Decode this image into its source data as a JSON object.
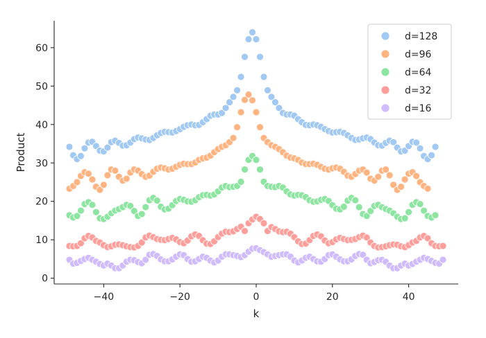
{
  "chart_data": {
    "type": "scatter",
    "title": "",
    "xlabel": "k",
    "ylabel": "Product",
    "xlim": [
      -53,
      53
    ],
    "ylim": [
      -1.5,
      67
    ],
    "xticks": [
      -40,
      -20,
      0,
      20,
      40
    ],
    "xtick_labels": [
      "−40",
      "−20",
      "0",
      "20",
      "40"
    ],
    "yticks": [
      0,
      10,
      20,
      30,
      40,
      50,
      60
    ],
    "ytick_labels": [
      "0",
      "10",
      "20",
      "30",
      "40",
      "50",
      "60"
    ],
    "legend_position": "top-right",
    "x": [
      -49,
      -48,
      -47,
      -46,
      -45,
      -44,
      -43,
      -42,
      -41,
      -40,
      -39,
      -38,
      -37,
      -36,
      -35,
      -34,
      -33,
      -32,
      -31,
      -30,
      -29,
      -28,
      -27,
      -26,
      -25,
      -24,
      -23,
      -22,
      -21,
      -20,
      -19,
      -18,
      -17,
      -16,
      -15,
      -14,
      -13,
      -12,
      -11,
      -10,
      -9,
      -8,
      -7,
      -6,
      -5,
      -4,
      -3,
      -2,
      -1,
      0,
      1,
      2,
      3,
      4,
      5,
      6,
      7,
      8,
      9,
      10,
      11,
      12,
      13,
      14,
      15,
      16,
      17,
      18,
      19,
      20,
      21,
      22,
      23,
      24,
      25,
      26,
      27,
      28,
      29,
      30,
      31,
      32,
      33,
      34,
      35,
      36,
      37,
      38,
      39,
      40,
      41,
      42,
      43,
      44,
      45,
      46,
      47,
      48,
      49
    ],
    "series": [
      {
        "name": "d=128",
        "color": "#a1c9f4",
        "values": [
          34.2,
          32.0,
          31.0,
          31.8,
          33.8,
          35.3,
          35.5,
          34.4,
          33.2,
          33.0,
          34.0,
          35.4,
          35.8,
          35.2,
          34.5,
          34.6,
          35.3,
          36.2,
          36.6,
          36.4,
          36.1,
          36.0,
          36.5,
          37.2,
          37.8,
          38.1,
          38.0,
          37.9,
          38.3,
          38.8,
          39.4,
          39.8,
          40.0,
          39.8,
          39.9,
          40.6,
          41.4,
          42.3,
          42.6,
          42.6,
          43.0,
          44.3,
          45.8,
          47.2,
          48.9,
          52.4,
          57.6,
          62.2,
          64.0,
          62.2,
          57.6,
          52.4,
          48.9,
          47.2,
          45.8,
          44.3,
          43.0,
          42.6,
          42.6,
          42.3,
          41.4,
          40.6,
          39.9,
          39.8,
          40.0,
          39.8,
          39.4,
          38.8,
          38.3,
          37.9,
          38.0,
          38.1,
          37.8,
          37.2,
          36.5,
          36.0,
          36.1,
          36.4,
          36.6,
          36.2,
          35.3,
          34.6,
          34.5,
          35.2,
          35.8,
          35.4,
          34.0,
          33.0,
          33.2,
          34.4,
          35.5,
          35.3,
          33.8,
          31.8,
          31.0,
          32.0,
          34.2
        ]
      },
      {
        "name": "d=96",
        "color": "#ffb482",
        "values": [
          23.3,
          24.0,
          25.0,
          26.6,
          27.6,
          27.2,
          25.7,
          23.8,
          23.0,
          24.3,
          26.8,
          28.3,
          28.0,
          26.4,
          25.4,
          25.9,
          27.5,
          28.3,
          28.0,
          27.1,
          26.4,
          26.7,
          27.7,
          28.5,
          28.8,
          28.6,
          28.3,
          28.5,
          29.0,
          29.5,
          29.8,
          29.7,
          29.7,
          30.1,
          30.8,
          31.2,
          31.4,
          31.9,
          32.8,
          33.6,
          34.2,
          34.6,
          35.4,
          36.5,
          39.3,
          43.2,
          46.4,
          47.8,
          46.3,
          43.2,
          39.3,
          36.5,
          35.4,
          34.6,
          34.2,
          33.6,
          32.8,
          31.9,
          31.4,
          31.2,
          30.8,
          30.1,
          29.7,
          29.7,
          29.8,
          29.5,
          29.0,
          28.5,
          28.3,
          28.6,
          28.8,
          28.5,
          27.7,
          26.7,
          26.4,
          27.1,
          28.0,
          28.3,
          27.5,
          25.9,
          25.4,
          26.4,
          28.0,
          28.3,
          26.8,
          24.3,
          23.0,
          23.8,
          25.7,
          27.2,
          27.6,
          26.6,
          25.0,
          24.0,
          23.3
        ]
      },
      {
        "name": "d=64",
        "color": "#8de5a1",
        "values": [
          16.4,
          15.8,
          16.2,
          17.6,
          19.3,
          19.8,
          19.1,
          17.2,
          15.6,
          15.4,
          16.0,
          16.9,
          17.6,
          18.0,
          18.5,
          19.1,
          18.8,
          17.5,
          16.2,
          16.7,
          18.5,
          20.3,
          20.9,
          20.2,
          18.6,
          17.9,
          18.1,
          19.0,
          20.1,
          20.6,
          20.4,
          20.0,
          19.9,
          20.3,
          21.1,
          21.6,
          21.7,
          21.5,
          21.8,
          22.6,
          23.6,
          24.0,
          23.7,
          23.8,
          24.0,
          25.1,
          28.3,
          30.8,
          31.8,
          30.8,
          28.3,
          25.1,
          24.0,
          23.8,
          23.7,
          24.0,
          23.6,
          22.6,
          21.8,
          21.5,
          21.7,
          21.6,
          21.1,
          20.3,
          19.9,
          20.0,
          20.4,
          20.6,
          20.1,
          19.0,
          18.1,
          17.9,
          18.6,
          20.2,
          20.9,
          20.3,
          18.5,
          16.7,
          16.2,
          17.5,
          18.8,
          19.1,
          18.5,
          18.0,
          17.6,
          16.9,
          16.0,
          15.4,
          15.6,
          17.2,
          19.1,
          19.8,
          19.3,
          17.6,
          16.2,
          15.8,
          16.4
        ]
      },
      {
        "name": "d=32",
        "color": "#ff9f9b",
        "values": [
          8.4,
          8.3,
          8.4,
          9.1,
          10.4,
          11.0,
          10.6,
          9.7,
          9.3,
          8.6,
          8.1,
          8.3,
          8.7,
          8.8,
          8.6,
          8.3,
          8.1,
          8.0,
          8.4,
          9.3,
          10.6,
          11.1,
          10.7,
          10.2,
          10.0,
          9.9,
          10.2,
          10.5,
          10.1,
          9.4,
          9.1,
          9.8,
          10.9,
          11.4,
          11.0,
          9.9,
          9.0,
          8.9,
          9.6,
          10.7,
          11.6,
          12.1,
          12.0,
          12.2,
          12.8,
          13.4,
          12.3,
          14.3,
          15.3,
          16.0,
          15.4,
          14.3,
          12.3,
          13.3,
          12.8,
          12.2,
          12.0,
          12.1,
          11.6,
          10.7,
          9.6,
          8.9,
          9.0,
          9.9,
          11.0,
          11.4,
          10.9,
          9.8,
          9.1,
          9.4,
          10.1,
          10.5,
          10.2,
          9.9,
          10.0,
          10.2,
          10.7,
          11.1,
          10.6,
          9.3,
          8.4,
          8.0,
          8.1,
          8.3,
          8.6,
          8.8,
          8.7,
          8.3,
          8.1,
          8.6,
          9.3,
          9.7,
          10.6,
          11.0,
          10.4,
          9.1,
          8.4,
          8.3,
          8.4
        ]
      },
      {
        "name": "d=16",
        "color": "#d0bbff",
        "values": [
          4.8,
          3.8,
          4.0,
          4.5,
          5.0,
          5.3,
          4.8,
          4.3,
          3.7,
          3.3,
          3.8,
          3.3,
          2.6,
          2.6,
          3.3,
          4.3,
          4.8,
          4.7,
          4.2,
          3.9,
          4.8,
          6.1,
          6.3,
          5.8,
          4.9,
          4.4,
          4.4,
          4.9,
          5.6,
          6.2,
          6.0,
          5.0,
          4.3,
          4.4,
          5.0,
          5.6,
          5.3,
          4.6,
          4.1,
          4.6,
          5.6,
          6.2,
          6.2,
          6.0,
          5.8,
          5.5,
          6.0,
          6.9,
          7.7,
          7.8,
          7.3,
          6.8,
          6.2,
          5.6,
          5.8,
          6.0,
          6.2,
          6.2,
          5.6,
          4.6,
          4.1,
          4.6,
          5.3,
          5.6,
          5.0,
          4.4,
          4.3,
          5.0,
          6.0,
          6.2,
          5.6,
          4.9,
          4.4,
          4.4,
          4.9,
          5.8,
          6.3,
          6.1,
          4.8,
          3.9,
          4.2,
          4.7,
          4.8,
          4.3,
          3.3,
          2.6,
          2.6,
          3.3,
          3.8,
          3.3,
          3.7,
          4.3,
          4.8,
          5.3,
          5.0,
          4.5,
          4.0,
          3.8,
          4.8
        ]
      }
    ]
  }
}
